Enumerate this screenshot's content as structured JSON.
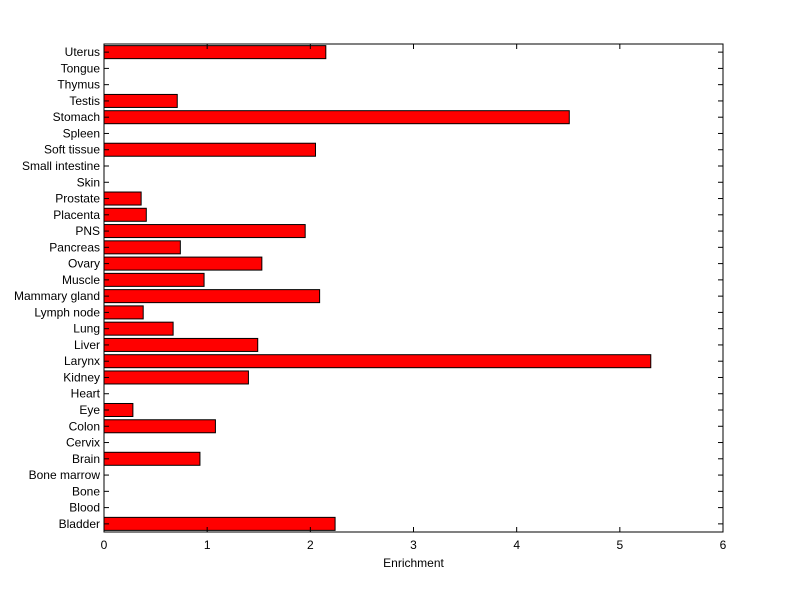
{
  "chart_data": {
    "type": "bar",
    "orientation": "horizontal",
    "title": "",
    "xlabel": "Enrichment",
    "ylabel": "",
    "xlim": [
      0,
      6
    ],
    "xticks": [
      "0",
      "1",
      "2",
      "3",
      "4",
      "5",
      "6"
    ],
    "grid": false,
    "legend": "none",
    "bar_color": "#ff0000",
    "categories": [
      "Bladder",
      "Blood",
      "Bone",
      "Bone marrow",
      "Brain",
      "Cervix",
      "Colon",
      "Eye",
      "Heart",
      "Kidney",
      "Larynx",
      "Liver",
      "Lung",
      "Lymph node",
      "Mammary gland",
      "Muscle",
      "Ovary",
      "Pancreas",
      "PNS",
      "Placenta",
      "Prostate",
      "Skin",
      "Small intestine",
      "Soft tissue",
      "Spleen",
      "Stomach",
      "Testis",
      "Thymus",
      "Tongue",
      "Uterus"
    ],
    "values": [
      2.24,
      0,
      0,
      0,
      0.93,
      0,
      1.08,
      0.28,
      0,
      1.4,
      5.3,
      1.49,
      0.67,
      0.38,
      2.09,
      0.97,
      1.53,
      0.74,
      1.95,
      0.41,
      0.36,
      0,
      0,
      2.05,
      0,
      4.51,
      0.71,
      0,
      0,
      2.15
    ]
  }
}
